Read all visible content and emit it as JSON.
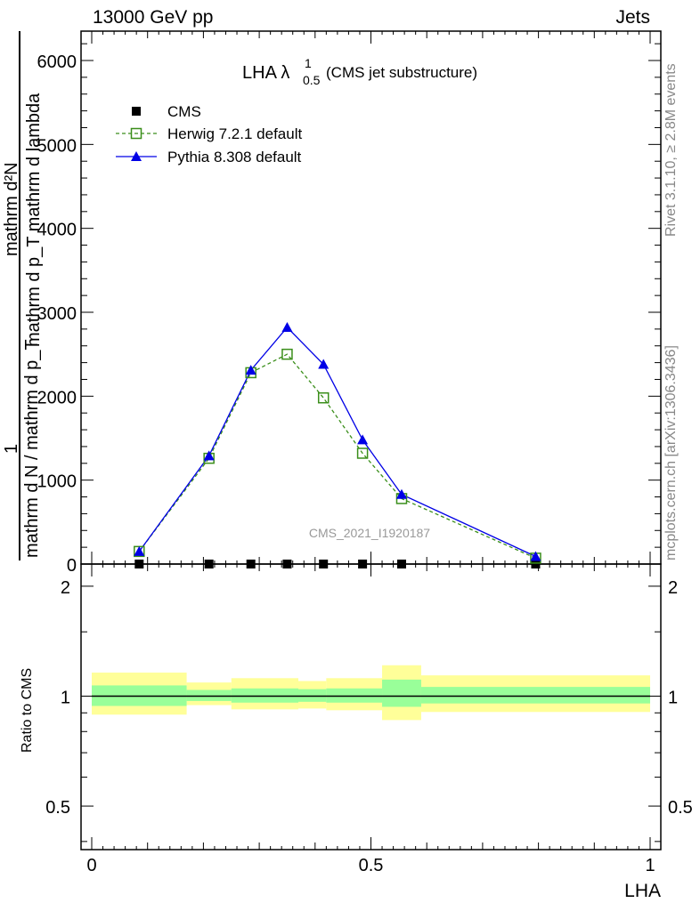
{
  "header": {
    "left": "13000 GeV pp",
    "right": "Jets"
  },
  "side_text": {
    "top": "Rivet 3.1.10, ≥ 2.8M events",
    "bottom": "mcplots.cern.ch [arXiv:1306.3436]"
  },
  "chart_data": [
    {
      "type": "line",
      "title": "LHA",
      "title_sup": "1",
      "title_sub": "0.5",
      "subtitle": "(CMS jet substructure)",
      "ylabel_numerator": "mathrm d²N",
      "ylabel_denominator": "mathrm d p_T mathrm d lambda",
      "ylabel_prefix": "1",
      "ylabel_prefix_denominator": "mathrm d N / mathrm d p_T",
      "watermark": "CMS_2021_I1920187",
      "xlim": [
        0,
        1
      ],
      "ylim": [
        0,
        6350
      ],
      "y_ticks": [
        0,
        1000,
        2000,
        3000,
        4000,
        5000,
        6000
      ],
      "y_tick_labels": [
        "0",
        "1000",
        "2000",
        "3000",
        "4000",
        "5000",
        "6000"
      ],
      "legend": {
        "placement": "top-left"
      },
      "series": [
        {
          "name": "CMS",
          "color": "#000000",
          "marker": "square-filled",
          "x": [
            0.085,
            0.21,
            0.285,
            0.35,
            0.415,
            0.485,
            0.555,
            0.795
          ],
          "y": [
            0,
            0,
            0,
            0,
            0,
            0,
            0,
            0
          ]
        },
        {
          "name": "Herwig 7.2.1 default",
          "color": "#3a8e1a",
          "marker": "square-open",
          "line": "dashed",
          "x": [
            0.085,
            0.21,
            0.285,
            0.35,
            0.415,
            0.485,
            0.555,
            0.795
          ],
          "y": [
            150,
            1260,
            2280,
            2500,
            1980,
            1320,
            780,
            70
          ]
        },
        {
          "name": "Pythia 8.308 default",
          "color": "#0000e6",
          "marker": "triangle-filled",
          "line": "solid",
          "x": [
            0.085,
            0.21,
            0.285,
            0.35,
            0.415,
            0.485,
            0.555,
            0.795
          ],
          "y": [
            150,
            1290,
            2310,
            2820,
            2380,
            1480,
            830,
            90
          ]
        }
      ]
    },
    {
      "type": "area",
      "ylabel": "Ratio to CMS",
      "xlabel": "LHA",
      "xlim": [
        0,
        1
      ],
      "ylim": [
        0.38,
        2.3
      ],
      "y_scale": "log",
      "x_tick_labels": [
        "0",
        "0.5",
        "1"
      ],
      "x_ticks": [
        0,
        0.5,
        1
      ],
      "y_tick_labels": [
        "0.5",
        "1",
        "2"
      ],
      "y_ticks": [
        0.5,
        1,
        2
      ],
      "reference_line": 1,
      "bands": [
        {
          "name": "outer",
          "color": "#ffff99",
          "edges": [
            0,
            0.17,
            0.25,
            0.37,
            0.42,
            0.52,
            0.59,
            1
          ],
          "lo": [
            0.89,
            0.945,
            0.92,
            0.925,
            0.915,
            0.86,
            0.905
          ],
          "hi": [
            1.16,
            1.09,
            1.12,
            1.1,
            1.12,
            1.215,
            1.14
          ]
        },
        {
          "name": "inner",
          "color": "#99ff99",
          "edges": [
            0,
            0.17,
            0.25,
            0.37,
            0.42,
            0.52,
            0.59,
            1
          ],
          "lo": [
            0.94,
            0.97,
            0.96,
            0.965,
            0.96,
            0.935,
            0.955
          ],
          "hi": [
            1.07,
            1.04,
            1.05,
            1.045,
            1.05,
            1.11,
            1.06
          ]
        }
      ]
    }
  ]
}
